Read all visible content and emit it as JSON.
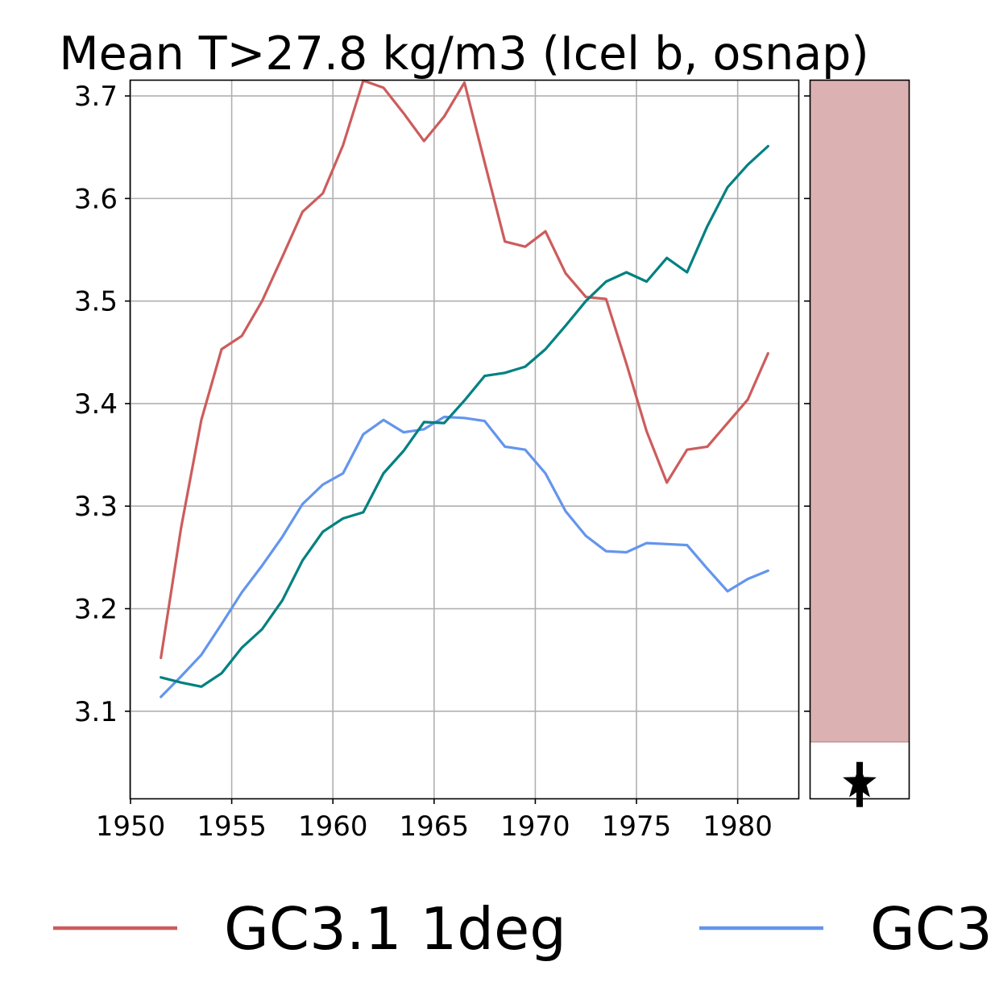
{
  "chart_data": {
    "type": "line",
    "title": "Mean T>27.8 kg/m3 (Icel b, osnap)",
    "xlabel": "",
    "ylabel": "",
    "xlim": [
      1950,
      1983
    ],
    "ylim": [
      3.015,
      3.715
    ],
    "xticks": [
      1950,
      1955,
      1960,
      1965,
      1970,
      1975,
      1980
    ],
    "yticks": [
      3.1,
      3.2,
      3.3,
      3.4,
      3.5,
      3.6,
      3.7
    ],
    "grid": true,
    "legend_position": "bottom",
    "x": [
      1951.5,
      1952.5,
      1953.5,
      1954.5,
      1955.5,
      1956.5,
      1957.5,
      1958.5,
      1959.5,
      1960.5,
      1961.5,
      1962.5,
      1963.5,
      1964.5,
      1965.5,
      1966.5,
      1967.5,
      1968.5,
      1969.5,
      1970.5,
      1971.5,
      1972.5,
      1973.5,
      1974.5,
      1975.5,
      1976.5,
      1977.5,
      1978.5,
      1979.5,
      1980.5,
      1981.5
    ],
    "series": [
      {
        "name": "GC3.1 1deg",
        "color": "#cd5c5c",
        "values": [
          3.152,
          3.279,
          3.384,
          3.453,
          3.466,
          3.5,
          3.543,
          3.587,
          3.605,
          3.652,
          3.715,
          3.708,
          3.683,
          3.656,
          3.68,
          3.713,
          3.635,
          3.558,
          3.553,
          3.568,
          3.527,
          3.504,
          3.502,
          3.439,
          3.373,
          3.323,
          3.355,
          3.358,
          3.381,
          3.404,
          3.449
        ]
      },
      {
        "name": "GC3",
        "color": "#6495ed",
        "values": [
          3.114,
          3.134,
          3.155,
          3.185,
          3.216,
          3.242,
          3.27,
          3.302,
          3.321,
          3.332,
          3.37,
          3.384,
          3.372,
          3.375,
          3.387,
          3.386,
          3.383,
          3.358,
          3.355,
          3.332,
          3.295,
          3.271,
          3.256,
          3.255,
          3.264,
          3.263,
          3.262,
          3.239,
          3.217,
          3.229,
          3.237
        ]
      },
      {
        "name": "",
        "color": "#008080",
        "values": [
          3.133,
          3.128,
          3.124,
          3.137,
          3.162,
          3.18,
          3.208,
          3.247,
          3.275,
          3.288,
          3.294,
          3.332,
          3.354,
          3.382,
          3.381,
          3.403,
          3.427,
          3.43,
          3.436,
          3.453,
          3.476,
          3.5,
          3.519,
          3.528,
          3.519,
          3.542,
          3.528,
          3.573,
          3.611,
          3.633,
          3.651
        ]
      }
    ],
    "side_panel": {
      "band_low": 3.07,
      "band_high": 3.715,
      "band_color": "#dbb1b1",
      "marker": "star",
      "marker_value": 3.027
    }
  }
}
